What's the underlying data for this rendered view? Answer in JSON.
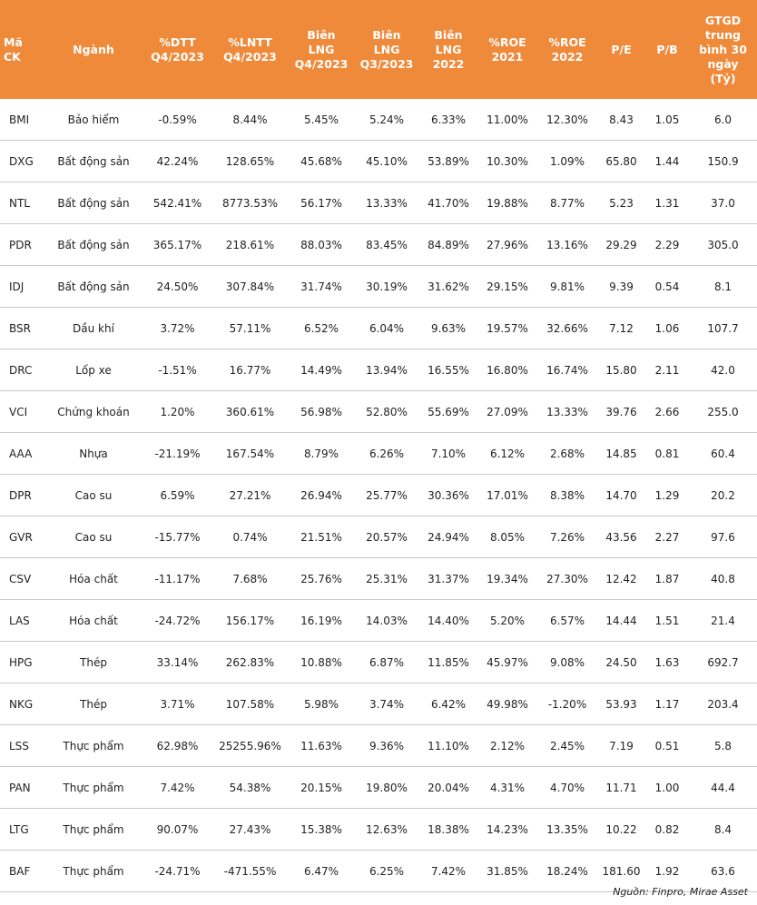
{
  "table": {
    "headers": [
      "Mã CK",
      "Ngành",
      "%DTT\nQ4/2023",
      "%LNTT\nQ4/2023",
      "Biên\nLNG\nQ4/2023",
      "Biên\nLNG\nQ3/2023",
      "Biên\nLNG\n2022",
      "%ROE\n2021",
      "%ROE\n2022",
      "P/E",
      "P/B",
      "GTGD\ntrung\nbình 30\nngày\n(Tỷ)"
    ],
    "rows": [
      [
        "BMI",
        "Bảo hiểm",
        "-0.59%",
        "8.44%",
        "5.45%",
        "5.24%",
        "6.33%",
        "11.00%",
        "12.30%",
        "8.43",
        "1.05",
        "6.0"
      ],
      [
        "DXG",
        "Bất động sản",
        "42.24%",
        "128.65%",
        "45.68%",
        "45.10%",
        "53.89%",
        "10.30%",
        "1.09%",
        "65.80",
        "1.44",
        "150.9"
      ],
      [
        "NTL",
        "Bất động sản",
        "542.41%",
        "8773.53%",
        "56.17%",
        "13.33%",
        "41.70%",
        "19.88%",
        "8.77%",
        "5.23",
        "1.31",
        "37.0"
      ],
      [
        "PDR",
        "Bất động sản",
        "365.17%",
        "218.61%",
        "88.03%",
        "83.45%",
        "84.89%",
        "27.96%",
        "13.16%",
        "29.29",
        "2.29",
        "305.0"
      ],
      [
        "IDJ",
        "Bất động sản",
        "24.50%",
        "307.84%",
        "31.74%",
        "30.19%",
        "31.62%",
        "29.15%",
        "9.81%",
        "9.39",
        "0.54",
        "8.1"
      ],
      [
        "BSR",
        "Dầu khí",
        "3.72%",
        "57.11%",
        "6.52%",
        "6.04%",
        "9.63%",
        "19.57%",
        "32.66%",
        "7.12",
        "1.06",
        "107.7"
      ],
      [
        "DRC",
        "Lốp xe",
        "-1.51%",
        "16.77%",
        "14.49%",
        "13.94%",
        "16.55%",
        "16.80%",
        "16.74%",
        "15.80",
        "2.11",
        "42.0"
      ],
      [
        "VCI",
        "Chứng khoán",
        "1.20%",
        "360.61%",
        "56.98%",
        "52.80%",
        "55.69%",
        "27.09%",
        "13.33%",
        "39.76",
        "2.66",
        "255.0"
      ],
      [
        "AAA",
        "Nhựa",
        "-21.19%",
        "167.54%",
        "8.79%",
        "6.26%",
        "7.10%",
        "6.12%",
        "2.68%",
        "14.85",
        "0.81",
        "60.4"
      ],
      [
        "DPR",
        "Cao su",
        "6.59%",
        "27.21%",
        "26.94%",
        "25.77%",
        "30.36%",
        "17.01%",
        "8.38%",
        "14.70",
        "1.29",
        "20.2"
      ],
      [
        "GVR",
        "Cao su",
        "-15.77%",
        "0.74%",
        "21.51%",
        "20.57%",
        "24.94%",
        "8.05%",
        "7.26%",
        "43.56",
        "2.27",
        "97.6"
      ],
      [
        "CSV",
        "Hóa chất",
        "-11.17%",
        "7.68%",
        "25.76%",
        "25.31%",
        "31.37%",
        "19.34%",
        "27.30%",
        "12.42",
        "1.87",
        "40.8"
      ],
      [
        "LAS",
        "Hóa chất",
        "-24.72%",
        "156.17%",
        "16.19%",
        "14.03%",
        "14.40%",
        "5.20%",
        "6.57%",
        "14.44",
        "1.51",
        "21.4"
      ],
      [
        "HPG",
        "Thép",
        "33.14%",
        "262.83%",
        "10.88%",
        "6.87%",
        "11.85%",
        "45.97%",
        "9.08%",
        "24.50",
        "1.63",
        "692.7"
      ],
      [
        "NKG",
        "Thép",
        "3.71%",
        "107.58%",
        "5.98%",
        "3.74%",
        "6.42%",
        "49.98%",
        "-1.20%",
        "53.93",
        "1.17",
        "203.4"
      ],
      [
        "LSS",
        "Thực phẩm",
        "62.98%",
        "25255.96%",
        "11.63%",
        "9.36%",
        "11.10%",
        "2.12%",
        "2.45%",
        "7.19",
        "0.51",
        "5.8"
      ],
      [
        "PAN",
        "Thực phẩm",
        "7.42%",
        "54.38%",
        "20.15%",
        "19.80%",
        "20.04%",
        "4.31%",
        "4.70%",
        "11.71",
        "1.00",
        "44.4"
      ],
      [
        "LTG",
        "Thực phẩm",
        "90.07%",
        "27.43%",
        "15.38%",
        "12.63%",
        "18.38%",
        "14.23%",
        "13.35%",
        "10.22",
        "0.82",
        "8.4"
      ],
      [
        "BAF",
        "Thực phẩm",
        "-24.71%",
        "-471.55%",
        "6.47%",
        "6.25%",
        "7.42%",
        "31.85%",
        "18.24%",
        "181.60",
        "1.92",
        "63.6"
      ]
    ]
  },
  "source": "Nguồn: Finpro, Mirae Asset",
  "colors": {
    "header_bg": "#ef8a3b",
    "header_text": "#ffffff",
    "row_border": "#c9c9c9"
  }
}
